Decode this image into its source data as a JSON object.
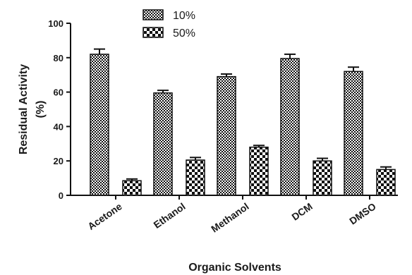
{
  "chart_data": {
    "type": "bar",
    "categories": [
      "Acetone",
      "Ethanol",
      "Methanol",
      "DCM",
      "DMSO"
    ],
    "series": [
      {
        "name": "10%",
        "values": [
          82,
          59.5,
          69,
          79.5,
          72
        ],
        "errors": [
          3,
          1.5,
          1.5,
          2.5,
          2.5
        ],
        "pattern": "dense-checker"
      },
      {
        "name": "50%",
        "values": [
          8.5,
          20.5,
          28,
          20,
          15
        ],
        "errors": [
          1,
          1.5,
          1,
          1.5,
          1.5
        ],
        "pattern": "coarse-checker"
      }
    ],
    "xlabel": "Organic Solvents",
    "ylabel_line1": "Residual Activity",
    "ylabel_line2": "(%)",
    "ylim": [
      0,
      100
    ],
    "yticks": [
      "0",
      "20",
      "40",
      "60",
      "80",
      "100"
    ],
    "legend_position": "top-center",
    "grid": false
  }
}
